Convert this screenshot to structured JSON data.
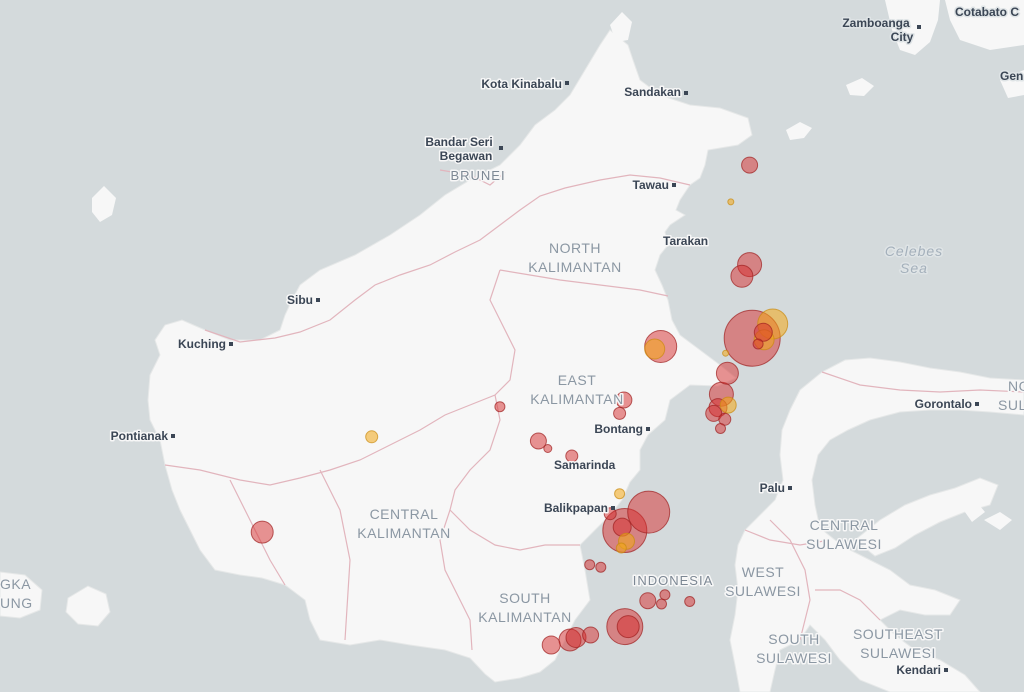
{
  "map": {
    "colors": {
      "water": "#d4dadc",
      "land": "#f7f7f7",
      "admin_border": "#e2b5bd",
      "marker_red": "#d62c2c",
      "marker_orange": "#f3a716",
      "city_text": "#3b4655"
    },
    "cities": [
      {
        "id": "kota-kinabalu",
        "name": "Kota Kinabalu"
      },
      {
        "id": "sandakan",
        "name": "Sandakan"
      },
      {
        "id": "bandar-seri-begawan",
        "name_line1": "Bandar Seri",
        "name_line2": "Begawan"
      },
      {
        "id": "tawau",
        "name": "Tawau"
      },
      {
        "id": "tarakan",
        "name": "Tarakan"
      },
      {
        "id": "sibu",
        "name": "Sibu"
      },
      {
        "id": "kuching",
        "name": "Kuching"
      },
      {
        "id": "pontianak",
        "name": "Pontianak"
      },
      {
        "id": "bontang",
        "name": "Bontang"
      },
      {
        "id": "samarinda",
        "name": "Samarinda"
      },
      {
        "id": "balikpapan",
        "name": "Balikpapan"
      },
      {
        "id": "palu",
        "name": "Palu"
      },
      {
        "id": "gorontalo",
        "name": "Gorontalo"
      },
      {
        "id": "kendari",
        "name": "Kendari"
      },
      {
        "id": "zamboanga",
        "name_line1": "Zamboanga",
        "name_line2": "City"
      },
      {
        "id": "cotabato",
        "name": "Cotabato C"
      },
      {
        "id": "gen",
        "name": "Gen"
      }
    ],
    "regions": [
      {
        "id": "north-kalimantan",
        "line1": "NORTH",
        "line2": "KALIMANTAN"
      },
      {
        "id": "east-kalimantan",
        "line1": "EAST",
        "line2": "KALIMANTAN"
      },
      {
        "id": "central-kalimantan",
        "line1": "CENTRAL",
        "line2": "KALIMANTAN"
      },
      {
        "id": "south-kalimantan",
        "line1": "SOUTH",
        "line2": "KALIMANTAN"
      },
      {
        "id": "central-sulawesi",
        "line1": "CENTRAL",
        "line2": "SULAWESI"
      },
      {
        "id": "west-sulawesi",
        "line1": "WEST",
        "line2": "SULAWESI"
      },
      {
        "id": "south-sulawesi",
        "line1": "SOUTH",
        "line2": "SULAWESI"
      },
      {
        "id": "southeast-sulawesi",
        "line1": "SOUTHEAST",
        "line2": "SULAWESI"
      },
      {
        "id": "bangka",
        "line1": "GKA",
        "line2": "UNG"
      },
      {
        "id": "north-sulawesi",
        "line1": "NO",
        "line2": "SUL"
      }
    ],
    "countries": [
      {
        "id": "brunei",
        "name": "BRUNEI"
      },
      {
        "id": "indonesia",
        "name": "INDONESIA"
      }
    ],
    "seas": [
      {
        "id": "celebes-sea",
        "line1": "Celebes",
        "line2": "Sea"
      }
    ],
    "markers": [
      {
        "id": 1,
        "lat": 3.3,
        "lon": 117.58,
        "size": 8,
        "color": "red"
      },
      {
        "id": 2,
        "lat": 2.86,
        "lon": 117.36,
        "size": 3,
        "color": "orange"
      },
      {
        "id": 3,
        "lat": 2.11,
        "lon": 117.58,
        "size": 12,
        "color": "red"
      },
      {
        "id": 4,
        "lat": 1.97,
        "lon": 117.49,
        "size": 11,
        "color": "red"
      },
      {
        "id": 5,
        "lat": 1.4,
        "lon": 117.85,
        "size": 15,
        "color": "orange"
      },
      {
        "id": 6,
        "lat": 1.23,
        "lon": 117.61,
        "size": 28,
        "color": "red"
      },
      {
        "id": 7,
        "lat": 1.3,
        "lon": 117.74,
        "size": 9,
        "color": "red"
      },
      {
        "id": 8,
        "lat": 1.21,
        "lon": 117.75,
        "size": 10,
        "color": "orange"
      },
      {
        "id": 9,
        "lat": 1.16,
        "lon": 117.68,
        "size": 5,
        "color": "red"
      },
      {
        "id": 10,
        "lat": 1.13,
        "lon": 116.54,
        "size": 16,
        "color": "red"
      },
      {
        "id": 11,
        "lat": 1.1,
        "lon": 116.47,
        "size": 10,
        "color": "orange"
      },
      {
        "id": 12,
        "lat": 1.05,
        "lon": 117.3,
        "size": 3,
        "color": "orange"
      },
      {
        "id": 13,
        "lat": 0.81,
        "lon": 117.32,
        "size": 11,
        "color": "red"
      },
      {
        "id": 14,
        "lat": 0.56,
        "lon": 117.25,
        "size": 12,
        "color": "red"
      },
      {
        "id": 15,
        "lat": 0.43,
        "lon": 117.33,
        "size": 8,
        "color": "orange"
      },
      {
        "id": 16,
        "lat": 0.4,
        "lon": 117.21,
        "size": 9,
        "color": "red"
      },
      {
        "id": 17,
        "lat": 0.33,
        "lon": 117.16,
        "size": 8,
        "color": "red"
      },
      {
        "id": 18,
        "lat": 0.26,
        "lon": 117.29,
        "size": 6,
        "color": "red"
      },
      {
        "id": 19,
        "lat": 0.15,
        "lon": 117.24,
        "size": 5,
        "color": "red"
      },
      {
        "id": 20,
        "lat": 0.49,
        "lon": 116.11,
        "size": 8,
        "color": "red"
      },
      {
        "id": 21,
        "lat": 0.33,
        "lon": 116.06,
        "size": 6,
        "color": "red"
      },
      {
        "id": 22,
        "lat": 0.41,
        "lon": 114.66,
        "size": 5,
        "color": "red"
      },
      {
        "id": 23,
        "lat": 0.05,
        "lon": 113.16,
        "size": 6,
        "color": "orange"
      },
      {
        "id": 24,
        "lat": 0.0,
        "lon": 115.11,
        "size": 8,
        "color": "red"
      },
      {
        "id": 25,
        "lat": -0.09,
        "lon": 115.22,
        "size": 4,
        "color": "red"
      },
      {
        "id": 26,
        "lat": -0.18,
        "lon": 115.5,
        "size": 6,
        "color": "red"
      },
      {
        "id": 27,
        "lat": -0.63,
        "lon": 116.06,
        "size": 5,
        "color": "orange"
      },
      {
        "id": 28,
        "lat": -0.85,
        "lon": 116.4,
        "size": 21,
        "color": "red"
      },
      {
        "id": 29,
        "lat": -0.87,
        "lon": 115.95,
        "size": 6,
        "color": "red"
      },
      {
        "id": 30,
        "lat": -1.07,
        "lon": 116.12,
        "size": 22,
        "color": "red"
      },
      {
        "id": 31,
        "lat": -1.03,
        "lon": 116.09,
        "size": 9,
        "color": "red"
      },
      {
        "id": 32,
        "lat": -1.2,
        "lon": 116.14,
        "size": 8,
        "color": "orange"
      },
      {
        "id": 33,
        "lat": -1.28,
        "lon": 116.08,
        "size": 5,
        "color": "orange"
      },
      {
        "id": 34,
        "lat": -1.09,
        "lon": 111.88,
        "size": 11,
        "color": "red"
      },
      {
        "id": 35,
        "lat": -1.48,
        "lon": 115.71,
        "size": 5,
        "color": "red"
      },
      {
        "id": 36,
        "lat": -1.51,
        "lon": 115.84,
        "size": 5,
        "color": "red"
      },
      {
        "id": 37,
        "lat": -1.91,
        "lon": 116.39,
        "size": 8,
        "color": "red"
      },
      {
        "id": 38,
        "lat": -1.95,
        "lon": 116.55,
        "size": 5,
        "color": "red"
      },
      {
        "id": 39,
        "lat": -1.84,
        "lon": 116.59,
        "size": 5,
        "color": "red"
      },
      {
        "id": 40,
        "lat": -1.92,
        "lon": 116.88,
        "size": 5,
        "color": "red"
      },
      {
        "id": 41,
        "lat": -2.22,
        "lon": 116.12,
        "size": 18,
        "color": "red"
      },
      {
        "id": 42,
        "lat": -2.22,
        "lon": 116.16,
        "size": 11,
        "color": "red"
      },
      {
        "id": 43,
        "lat": -2.32,
        "lon": 115.72,
        "size": 8,
        "color": "red"
      },
      {
        "id": 44,
        "lat": -2.35,
        "lon": 115.55,
        "size": 10,
        "color": "red"
      },
      {
        "id": 45,
        "lat": -2.38,
        "lon": 115.48,
        "size": 11,
        "color": "red"
      },
      {
        "id": 46,
        "lat": -2.44,
        "lon": 115.26,
        "size": 9,
        "color": "red"
      }
    ]
  }
}
